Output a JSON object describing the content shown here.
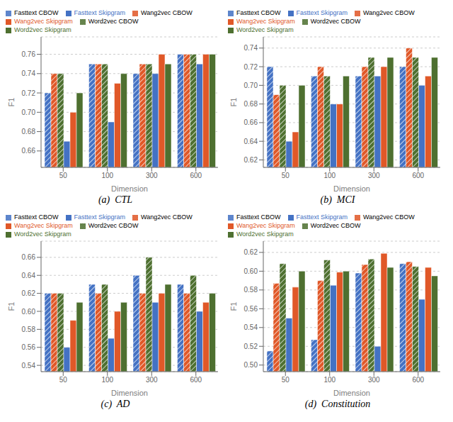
{
  "chart_data": [
    {
      "type": "bar",
      "title": "(a)  CTL",
      "xlabel": "Dimension",
      "ylabel": "F1",
      "categories": [
        "50",
        "100",
        "300",
        "600"
      ],
      "series": [
        {
          "name": "Fasttext CBOW",
          "color": "#4472C4",
          "line_style": "hatched",
          "values": [
            0.72,
            0.75,
            0.74,
            0.76
          ]
        },
        {
          "name": "Wang2vec CBOW",
          "color": "#E05828",
          "line_style": "hatched",
          "values": [
            0.74,
            0.75,
            0.75,
            0.76
          ]
        },
        {
          "name": "Word2vec CBOW",
          "color": "#4E7030",
          "line_style": "hatched",
          "values": [
            0.74,
            0.75,
            0.75,
            0.76
          ]
        },
        {
          "name": "Fasttext Skipgram",
          "color": "#4472C4",
          "line_style": "solid",
          "values": [
            0.67,
            0.69,
            0.74,
            0.75
          ]
        },
        {
          "name": "Wang2vec Skipgram",
          "color": "#E05828",
          "line_style": "solid",
          "values": [
            0.7,
            0.73,
            0.76,
            0.76
          ]
        },
        {
          "name": "Word2vec Skipgram",
          "color": "#4E7030",
          "line_style": "solid",
          "values": [
            0.72,
            0.74,
            0.75,
            0.76
          ]
        }
      ],
      "ylim": [
        0.643,
        0.778
      ],
      "yticks": [
        0.66,
        0.68,
        {
          "value": 0.7,
          "label": "0.70"
        },
        0.72,
        0.74,
        0.76
      ],
      "grid": true,
      "legend": "upper left"
    },
    {
      "type": "bar",
      "title": "(b)  MCI",
      "xlabel": "Dimension",
      "ylabel": "F1",
      "categories": [
        "50",
        "100",
        "300",
        "600"
      ],
      "series": [
        {
          "name": "Fasttext CBOW",
          "color": "#4472C4",
          "line_style": "hatched",
          "values": [
            0.72,
            0.71,
            0.71,
            0.72
          ]
        },
        {
          "name": "Wang2vec CBOW",
          "color": "#E05828",
          "line_style": "hatched",
          "values": [
            0.69,
            0.72,
            0.72,
            0.74
          ]
        },
        {
          "name": "Word2vec CBOW",
          "color": "#4E7030",
          "line_style": "hatched",
          "values": [
            0.7,
            0.71,
            0.73,
            0.73
          ]
        },
        {
          "name": "Fasttext Skipgram",
          "color": "#4472C4",
          "line_style": "solid",
          "values": [
            0.64,
            0.68,
            0.71,
            0.7
          ]
        },
        {
          "name": "Wang2vec Skipgram",
          "color": "#E05828",
          "line_style": "solid",
          "values": [
            0.65,
            0.68,
            0.72,
            0.71
          ]
        },
        {
          "name": "Word2vec Skipgram",
          "color": "#4E7030",
          "line_style": "solid",
          "values": [
            0.7,
            0.71,
            0.73,
            0.73
          ]
        }
      ],
      "ylim": [
        0.612,
        0.752
      ],
      "yticks": [
        0.62,
        0.64,
        0.66,
        0.68,
        {
          "value": 0.7,
          "label": "0.70"
        },
        0.72,
        0.74
      ],
      "grid": true,
      "legend": "upper left"
    },
    {
      "type": "bar",
      "title": "(c)  AD",
      "xlabel": "Dimension",
      "ylabel": "F1",
      "categories": [
        "50",
        "100",
        "300",
        "600"
      ],
      "series": [
        {
          "name": "Fasttext CBOW",
          "color": "#4472C4",
          "line_style": "hatched",
          "values": [
            0.62,
            0.63,
            0.64,
            0.63
          ]
        },
        {
          "name": "Wang2vec CBOW",
          "color": "#E05828",
          "line_style": "hatched",
          "values": [
            0.62,
            0.62,
            0.62,
            0.62
          ]
        },
        {
          "name": "Word2vec CBOW",
          "color": "#4E7030",
          "line_style": "hatched",
          "values": [
            0.62,
            0.63,
            0.66,
            0.64
          ]
        },
        {
          "name": "Fasttext Skipgram",
          "color": "#4472C4",
          "line_style": "solid",
          "values": [
            0.56,
            0.57,
            0.61,
            0.6
          ]
        },
        {
          "name": "Wang2vec Skipgram",
          "color": "#E05828",
          "line_style": "solid",
          "values": [
            0.59,
            0.6,
            0.62,
            0.61
          ]
        },
        {
          "name": "Word2vec Skipgram",
          "color": "#4E7030",
          "line_style": "solid",
          "values": [
            0.61,
            0.61,
            0.63,
            0.62
          ]
        }
      ],
      "ylim": [
        0.533,
        0.678
      ],
      "yticks": [
        0.54,
        0.56,
        0.58,
        {
          "value": 0.6,
          "label": "0.60"
        },
        0.62,
        0.64,
        0.66
      ],
      "grid": true,
      "legend": "upper left"
    },
    {
      "type": "bar",
      "title": "(d)  Constitution",
      "xlabel": "Dimension",
      "ylabel": "F1",
      "categories": [
        "50",
        "100",
        "300",
        "600"
      ],
      "series": [
        {
          "name": "Fasttext CBOW",
          "color": "#4472C4",
          "line_style": "hatched",
          "values": [
            0.515,
            0.527,
            0.598,
            0.608
          ]
        },
        {
          "name": "Wang2vec CBOW",
          "color": "#E05828",
          "line_style": "hatched",
          "values": [
            0.587,
            0.59,
            0.607,
            0.61
          ]
        },
        {
          "name": "Word2vec CBOW",
          "color": "#4E7030",
          "line_style": "hatched",
          "values": [
            0.608,
            0.612,
            0.613,
            0.605
          ]
        },
        {
          "name": "Fasttext Skipgram",
          "color": "#4472C4",
          "line_style": "solid",
          "values": [
            0.55,
            0.585,
            0.52,
            0.57
          ]
        },
        {
          "name": "Wang2vec Skipgram",
          "color": "#E05828",
          "line_style": "solid",
          "values": [
            0.583,
            0.599,
            0.619,
            0.604
          ]
        },
        {
          "name": "Word2vec Skipgram",
          "color": "#4E7030",
          "line_style": "solid",
          "values": [
            0.6,
            0.6,
            0.604,
            0.595
          ]
        }
      ],
      "ylim": [
        0.493,
        0.632
      ],
      "yticks": [
        {
          "value": 0.5,
          "label": "0.50"
        },
        0.52,
        0.54,
        0.56,
        0.58,
        {
          "value": 0.6,
          "label": "0.60"
        },
        0.62
      ],
      "grid": true,
      "legend": "upper left"
    }
  ]
}
